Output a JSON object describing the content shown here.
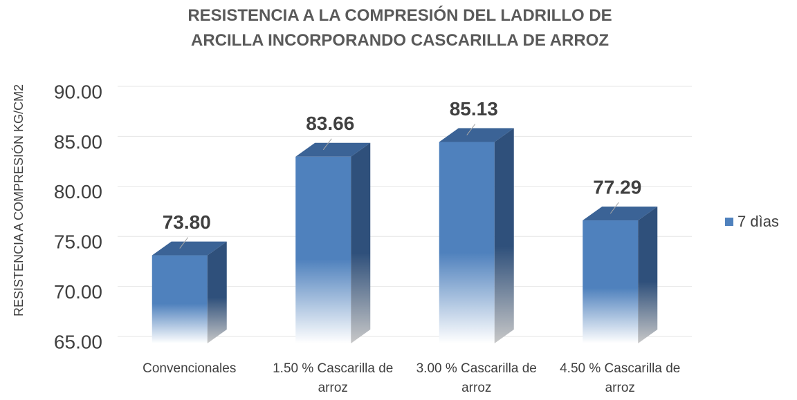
{
  "chart_data": {
    "type": "bar3d",
    "title": "RESISTENCIA A LA COMPRESIÓN DEL LADRILLO DE ARCILLA INCORPORANDO CASCARILLA DE ARROZ",
    "y_label": "RESISTENCIA A COMPRESIÓN KG/CM2",
    "categories": [
      "Convencionales",
      "1.50 %  Cascarilla de arroz",
      "3.00 %  Cascarilla de arroz",
      "4.50 %  Cascarilla de arroz"
    ],
    "series": [
      {
        "name": "7 dìas",
        "color": "#4f81bd",
        "values": [
          73.8,
          83.66,
          85.13,
          77.29
        ],
        "value_labels": [
          "73.80",
          "83.66",
          "85.13",
          "77.29"
        ]
      }
    ],
    "ylim": [
      65,
      90
    ],
    "yticks": [
      {
        "value": 65,
        "label": "65.00"
      },
      {
        "value": 70,
        "label": "70.00"
      },
      {
        "value": 75,
        "label": "75.00"
      },
      {
        "value": 80,
        "label": "80.00"
      },
      {
        "value": 85,
        "label": "85.00"
      },
      {
        "value": 90,
        "label": "90.00"
      }
    ],
    "grid": true,
    "legend": "right"
  }
}
